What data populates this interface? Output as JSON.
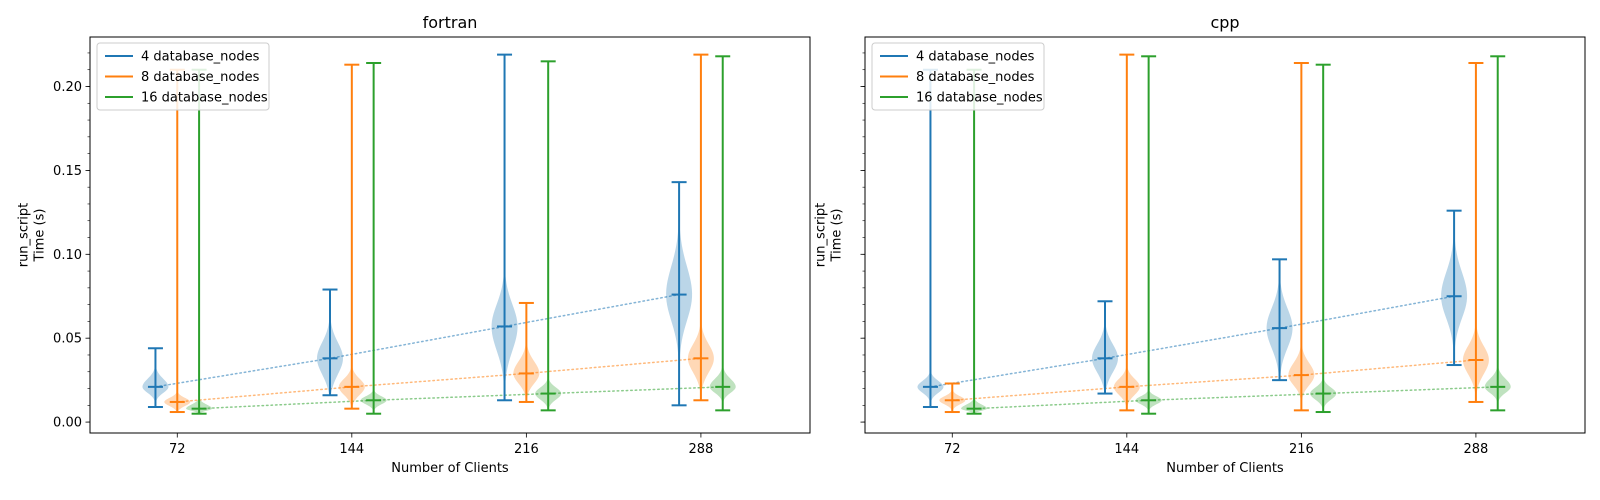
{
  "chart_data": [
    {
      "type": "violin",
      "title": "fortran",
      "xlabel": "Number of Clients",
      "ylabel_lines": [
        "run_script",
        "Time (s)"
      ],
      "x_ticks": [
        72,
        144,
        216,
        288
      ],
      "y_ticks": [
        "0.00",
        "0.05",
        "0.10",
        "0.15",
        "0.20"
      ],
      "ylim": [
        -0.0065,
        0.2295
      ],
      "legend_position": "upper-left",
      "series": [
        {
          "name": "4 database_nodes",
          "color": "#1f77b4",
          "x": [
            63,
            135,
            207,
            279
          ],
          "median": [
            0.021,
            0.038,
            0.057,
            0.076
          ],
          "min": [
            0.009,
            0.016,
            0.013,
            0.01
          ],
          "max": [
            0.044,
            0.079,
            0.219,
            0.143
          ],
          "q_low": [
            0.018,
            0.03,
            0.045,
            0.063
          ],
          "q_high": [
            0.025,
            0.046,
            0.068,
            0.09
          ]
        },
        {
          "name": "8 database_nodes",
          "color": "#ff7f0e",
          "x": [
            72,
            144,
            216,
            288
          ],
          "median": [
            0.012,
            0.021,
            0.029,
            0.038
          ],
          "min": [
            0.006,
            0.008,
            0.012,
            0.013
          ],
          "max": [
            0.21,
            0.213,
            0.071,
            0.219
          ],
          "q_low": [
            0.01,
            0.017,
            0.024,
            0.031
          ],
          "q_high": [
            0.014,
            0.025,
            0.035,
            0.045
          ]
        },
        {
          "name": "16 database_nodes",
          "color": "#2ca02c",
          "x": [
            81,
            153,
            225,
            297
          ],
          "median": [
            0.008,
            0.013,
            0.017,
            0.021
          ],
          "min": [
            0.005,
            0.005,
            0.007,
            0.007
          ],
          "max": [
            0.21,
            0.214,
            0.215,
            0.218
          ],
          "q_low": [
            0.007,
            0.011,
            0.014,
            0.018
          ],
          "q_high": [
            0.01,
            0.015,
            0.02,
            0.025
          ]
        }
      ]
    },
    {
      "type": "violin",
      "title": "cpp",
      "xlabel": "Number of Clients",
      "ylabel_lines": [
        "run_script",
        "Time (s)"
      ],
      "x_ticks": [
        72,
        144,
        216,
        288
      ],
      "y_ticks": [
        "0.00",
        "0.05",
        "0.10",
        "0.15",
        "0.20"
      ],
      "ylim": [
        -0.0065,
        0.2295
      ],
      "legend_position": "upper-left",
      "series": [
        {
          "name": "4 database_nodes",
          "color": "#1f77b4",
          "x": [
            63,
            135,
            207,
            279
          ],
          "median": [
            0.021,
            0.038,
            0.056,
            0.075
          ],
          "min": [
            0.009,
            0.017,
            0.025,
            0.034
          ],
          "max": [
            0.21,
            0.072,
            0.097,
            0.126
          ],
          "q_low": [
            0.018,
            0.031,
            0.046,
            0.064
          ],
          "q_high": [
            0.024,
            0.045,
            0.066,
            0.087
          ]
        },
        {
          "name": "8 database_nodes",
          "color": "#ff7f0e",
          "x": [
            72,
            144,
            216,
            288
          ],
          "median": [
            0.013,
            0.021,
            0.028,
            0.037
          ],
          "min": [
            0.006,
            0.007,
            0.007,
            0.012
          ],
          "max": [
            0.023,
            0.219,
            0.214,
            0.214
          ],
          "q_low": [
            0.011,
            0.017,
            0.023,
            0.03
          ],
          "q_high": [
            0.015,
            0.025,
            0.034,
            0.044
          ]
        },
        {
          "name": "16 database_nodes",
          "color": "#2ca02c",
          "x": [
            81,
            153,
            225,
            297
          ],
          "median": [
            0.008,
            0.013,
            0.017,
            0.021
          ],
          "min": [
            0.005,
            0.005,
            0.006,
            0.007
          ],
          "max": [
            0.21,
            0.218,
            0.213,
            0.218
          ],
          "q_low": [
            0.007,
            0.011,
            0.014,
            0.018
          ],
          "q_high": [
            0.01,
            0.015,
            0.02,
            0.025
          ]
        }
      ]
    }
  ]
}
